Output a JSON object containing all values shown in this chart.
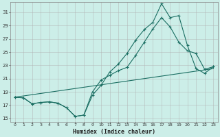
{
  "xlabel": "Humidex (Indice chaleur)",
  "bg_color": "#cceee8",
  "grid_color": "#b0b0b0",
  "line_color": "#1a6e62",
  "xlim": [
    -0.5,
    23.5
  ],
  "ylim": [
    14.5,
    32.5
  ],
  "xticks": [
    0,
    1,
    2,
    3,
    4,
    5,
    6,
    7,
    8,
    9,
    10,
    11,
    12,
    13,
    14,
    15,
    16,
    17,
    18,
    19,
    20,
    21,
    22,
    23
  ],
  "yticks": [
    15,
    17,
    19,
    21,
    23,
    25,
    27,
    29,
    31
  ],
  "series1_x": [
    0,
    1,
    2,
    3,
    4,
    5,
    6,
    7,
    8,
    9,
    10,
    11,
    12,
    13,
    14,
    15,
    16,
    17,
    18,
    19,
    20,
    21,
    22,
    23
  ],
  "series1_y": [
    18.2,
    18.1,
    17.2,
    17.4,
    17.5,
    17.3,
    16.6,
    15.3,
    15.5,
    19.0,
    20.8,
    21.5,
    22.2,
    22.7,
    24.5,
    26.5,
    28.5,
    30.2,
    28.8,
    26.5,
    25.2,
    24.8,
    22.4,
    22.8
  ],
  "series2_x": [
    0,
    1,
    2,
    3,
    4,
    5,
    6,
    7,
    8,
    9,
    10,
    11,
    12,
    13,
    14,
    15,
    16,
    17,
    18,
    19,
    20,
    21,
    22,
    23
  ],
  "series2_y": [
    18.2,
    18.1,
    17.2,
    17.4,
    17.5,
    17.3,
    16.6,
    15.3,
    15.5,
    18.5,
    20.0,
    22.0,
    23.2,
    24.8,
    26.8,
    28.4,
    29.5,
    32.3,
    30.2,
    30.5,
    26.0,
    22.5,
    21.8,
    22.8
  ],
  "series3_x": [
    0,
    23
  ],
  "series3_y": [
    18.2,
    22.5
  ],
  "figsize": [
    3.2,
    2.0
  ],
  "dpi": 100
}
